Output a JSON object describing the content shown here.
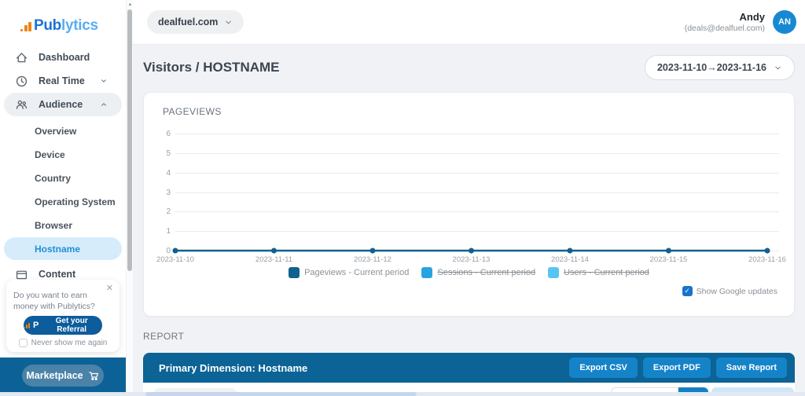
{
  "brand": {
    "name_primary": "Pub",
    "name_secondary": "lytics",
    "colors": {
      "bars": "#f08418",
      "primary_text": "#1b74d4",
      "secondary_text": "#58aef2"
    }
  },
  "sidebar": {
    "items": [
      {
        "label": "Dashboard",
        "icon": "home-icon"
      },
      {
        "label": "Real Time",
        "icon": "clock-icon",
        "chevron": "down"
      },
      {
        "label": "Audience",
        "icon": "users-icon",
        "chevron": "up",
        "active": true
      }
    ],
    "audience_children": [
      "Overview",
      "Device",
      "Country",
      "Operating System",
      "Browser",
      "Hostname"
    ],
    "active_child": "Hostname",
    "content_item": {
      "label": "Content",
      "icon": "window-icon"
    },
    "referral": {
      "close": "✕",
      "message": "Do you want to earn money with Publytics?",
      "button_label": "Get your Referral",
      "dismiss_label": "Never show me again"
    },
    "marketplace_label": "Marketplace"
  },
  "header": {
    "site_selector": "dealfuel.com",
    "user_name": "Andy",
    "user_email": "(deals@dealfuel.com)",
    "avatar_initials": "AN",
    "avatar_color": "#1789d3"
  },
  "page": {
    "title": "Visitors / HOSTNAME",
    "date_range": "2023-11-10→2023-11-16",
    "report_section_label": "REPORT"
  },
  "chart_data": {
    "type": "line",
    "title": "PAGEVIEWS",
    "x": [
      "2023-11-10",
      "2023-11-11",
      "2023-11-12",
      "2023-11-13",
      "2023-11-14",
      "2023-11-15",
      "2023-11-16"
    ],
    "series": [
      {
        "name": "Pageviews - Current period",
        "values": [
          0,
          0,
          0,
          0,
          0,
          0,
          0
        ],
        "color": "#11618f",
        "hidden": false
      },
      {
        "name": "Sessions - Current period",
        "values": [],
        "color": "#29a3e0",
        "hidden": true
      },
      {
        "name": "Users - Current period",
        "values": [],
        "color": "#55c6f2",
        "hidden": true
      }
    ],
    "ylim": [
      0,
      6
    ],
    "ytick_step": 1,
    "grid": true,
    "legend_position": "bottom"
  },
  "chart_extras": {
    "google_updates_label": "Show Google updates",
    "google_updates_checked": true,
    "check_glyph": "✓"
  },
  "report": {
    "primary_dimension": "Primary Dimension: Hostname",
    "buttons": [
      "Export CSV",
      "Export PDF",
      "Save Report"
    ],
    "bar_color": "#0c6396",
    "button_color": "#1583c8"
  }
}
